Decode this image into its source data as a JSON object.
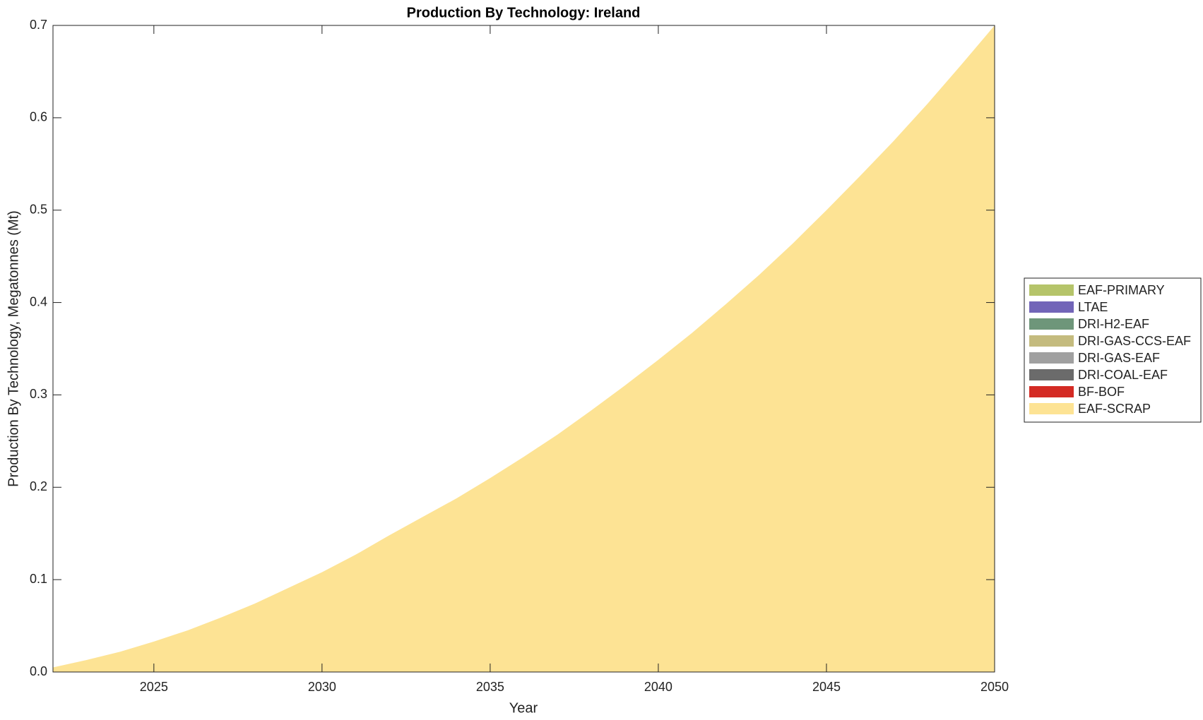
{
  "chart_data": {
    "type": "stacked_area",
    "title": "Production By Technology: Ireland",
    "x_label": "Year",
    "y_label": "Production By Technology, Megatonnes (Mt)",
    "x": [
      2022,
      2023,
      2024,
      2025,
      2026,
      2027,
      2028,
      2029,
      2030,
      2031,
      2032,
      2033,
      2034,
      2035,
      2036,
      2037,
      2038,
      2039,
      2040,
      2041,
      2042,
      2043,
      2044,
      2045,
      2046,
      2047,
      2048,
      2049,
      2050
    ],
    "series": [
      {
        "name": "EAF-PRIMARY",
        "color": "#b5c46a",
        "values": [
          0,
          0,
          0,
          0,
          0,
          0,
          0,
          0,
          0,
          0,
          0,
          0,
          0,
          0,
          0,
          0,
          0,
          0,
          0,
          0,
          0,
          0,
          0,
          0,
          0,
          0,
          0,
          0,
          0
        ]
      },
      {
        "name": "LTAE",
        "color": "#7265b8",
        "values": [
          0,
          0,
          0,
          0,
          0,
          0,
          0,
          0,
          0,
          0,
          0,
          0,
          0,
          0,
          0,
          0,
          0,
          0,
          0,
          0,
          0,
          0,
          0,
          0,
          0,
          0,
          0,
          0,
          0
        ]
      },
      {
        "name": "DRI-H2-EAF",
        "color": "#6e967a",
        "values": [
          0,
          0,
          0,
          0,
          0,
          0,
          0,
          0,
          0,
          0,
          0,
          0,
          0,
          0,
          0,
          0,
          0,
          0,
          0,
          0,
          0,
          0,
          0,
          0,
          0,
          0,
          0,
          0,
          0
        ]
      },
      {
        "name": "DRI-GAS-CCS-EAF",
        "color": "#c4bb7e",
        "values": [
          0,
          0,
          0,
          0,
          0,
          0,
          0,
          0,
          0,
          0,
          0,
          0,
          0,
          0,
          0,
          0,
          0,
          0,
          0,
          0,
          0,
          0,
          0,
          0,
          0,
          0,
          0,
          0,
          0
        ]
      },
      {
        "name": "DRI-GAS-EAF",
        "color": "#a0a0a0",
        "values": [
          0,
          0,
          0,
          0,
          0,
          0,
          0,
          0,
          0,
          0,
          0,
          0,
          0,
          0,
          0,
          0,
          0,
          0,
          0,
          0,
          0,
          0,
          0,
          0,
          0,
          0,
          0,
          0,
          0
        ]
      },
      {
        "name": "DRI-COAL-EAF",
        "color": "#6b6b6b",
        "values": [
          0,
          0,
          0,
          0,
          0,
          0,
          0,
          0,
          0,
          0,
          0,
          0,
          0,
          0,
          0,
          0,
          0,
          0,
          0,
          0,
          0,
          0,
          0,
          0,
          0,
          0,
          0,
          0,
          0
        ]
      },
      {
        "name": "BF-BOF",
        "color": "#d42b24",
        "values": [
          0,
          0,
          0,
          0,
          0,
          0,
          0,
          0,
          0,
          0,
          0,
          0,
          0,
          0,
          0,
          0,
          0,
          0,
          0,
          0,
          0,
          0,
          0,
          0,
          0,
          0,
          0,
          0,
          0
        ]
      },
      {
        "name": "EAF-SCRAP",
        "color": "#fde394",
        "values": [
          0.005,
          0.013,
          0.022,
          0.033,
          0.045,
          0.059,
          0.074,
          0.091,
          0.108,
          0.127,
          0.148,
          0.168,
          0.188,
          0.21,
          0.233,
          0.257,
          0.283,
          0.31,
          0.338,
          0.367,
          0.398,
          0.43,
          0.464,
          0.5,
          0.537,
          0.575,
          0.615,
          0.657,
          0.7
        ]
      }
    ],
    "xlim": [
      2022,
      2050
    ],
    "xticks": [
      2025,
      2030,
      2035,
      2040,
      2045,
      2050
    ],
    "ylim": [
      0,
      0.7
    ],
    "yticks": [
      {
        "value": 0,
        "label": "0.0"
      },
      0.1,
      0.2,
      0.3,
      0.4,
      0.5,
      0.6,
      0.7
    ],
    "legend": "right",
    "grid": false
  }
}
